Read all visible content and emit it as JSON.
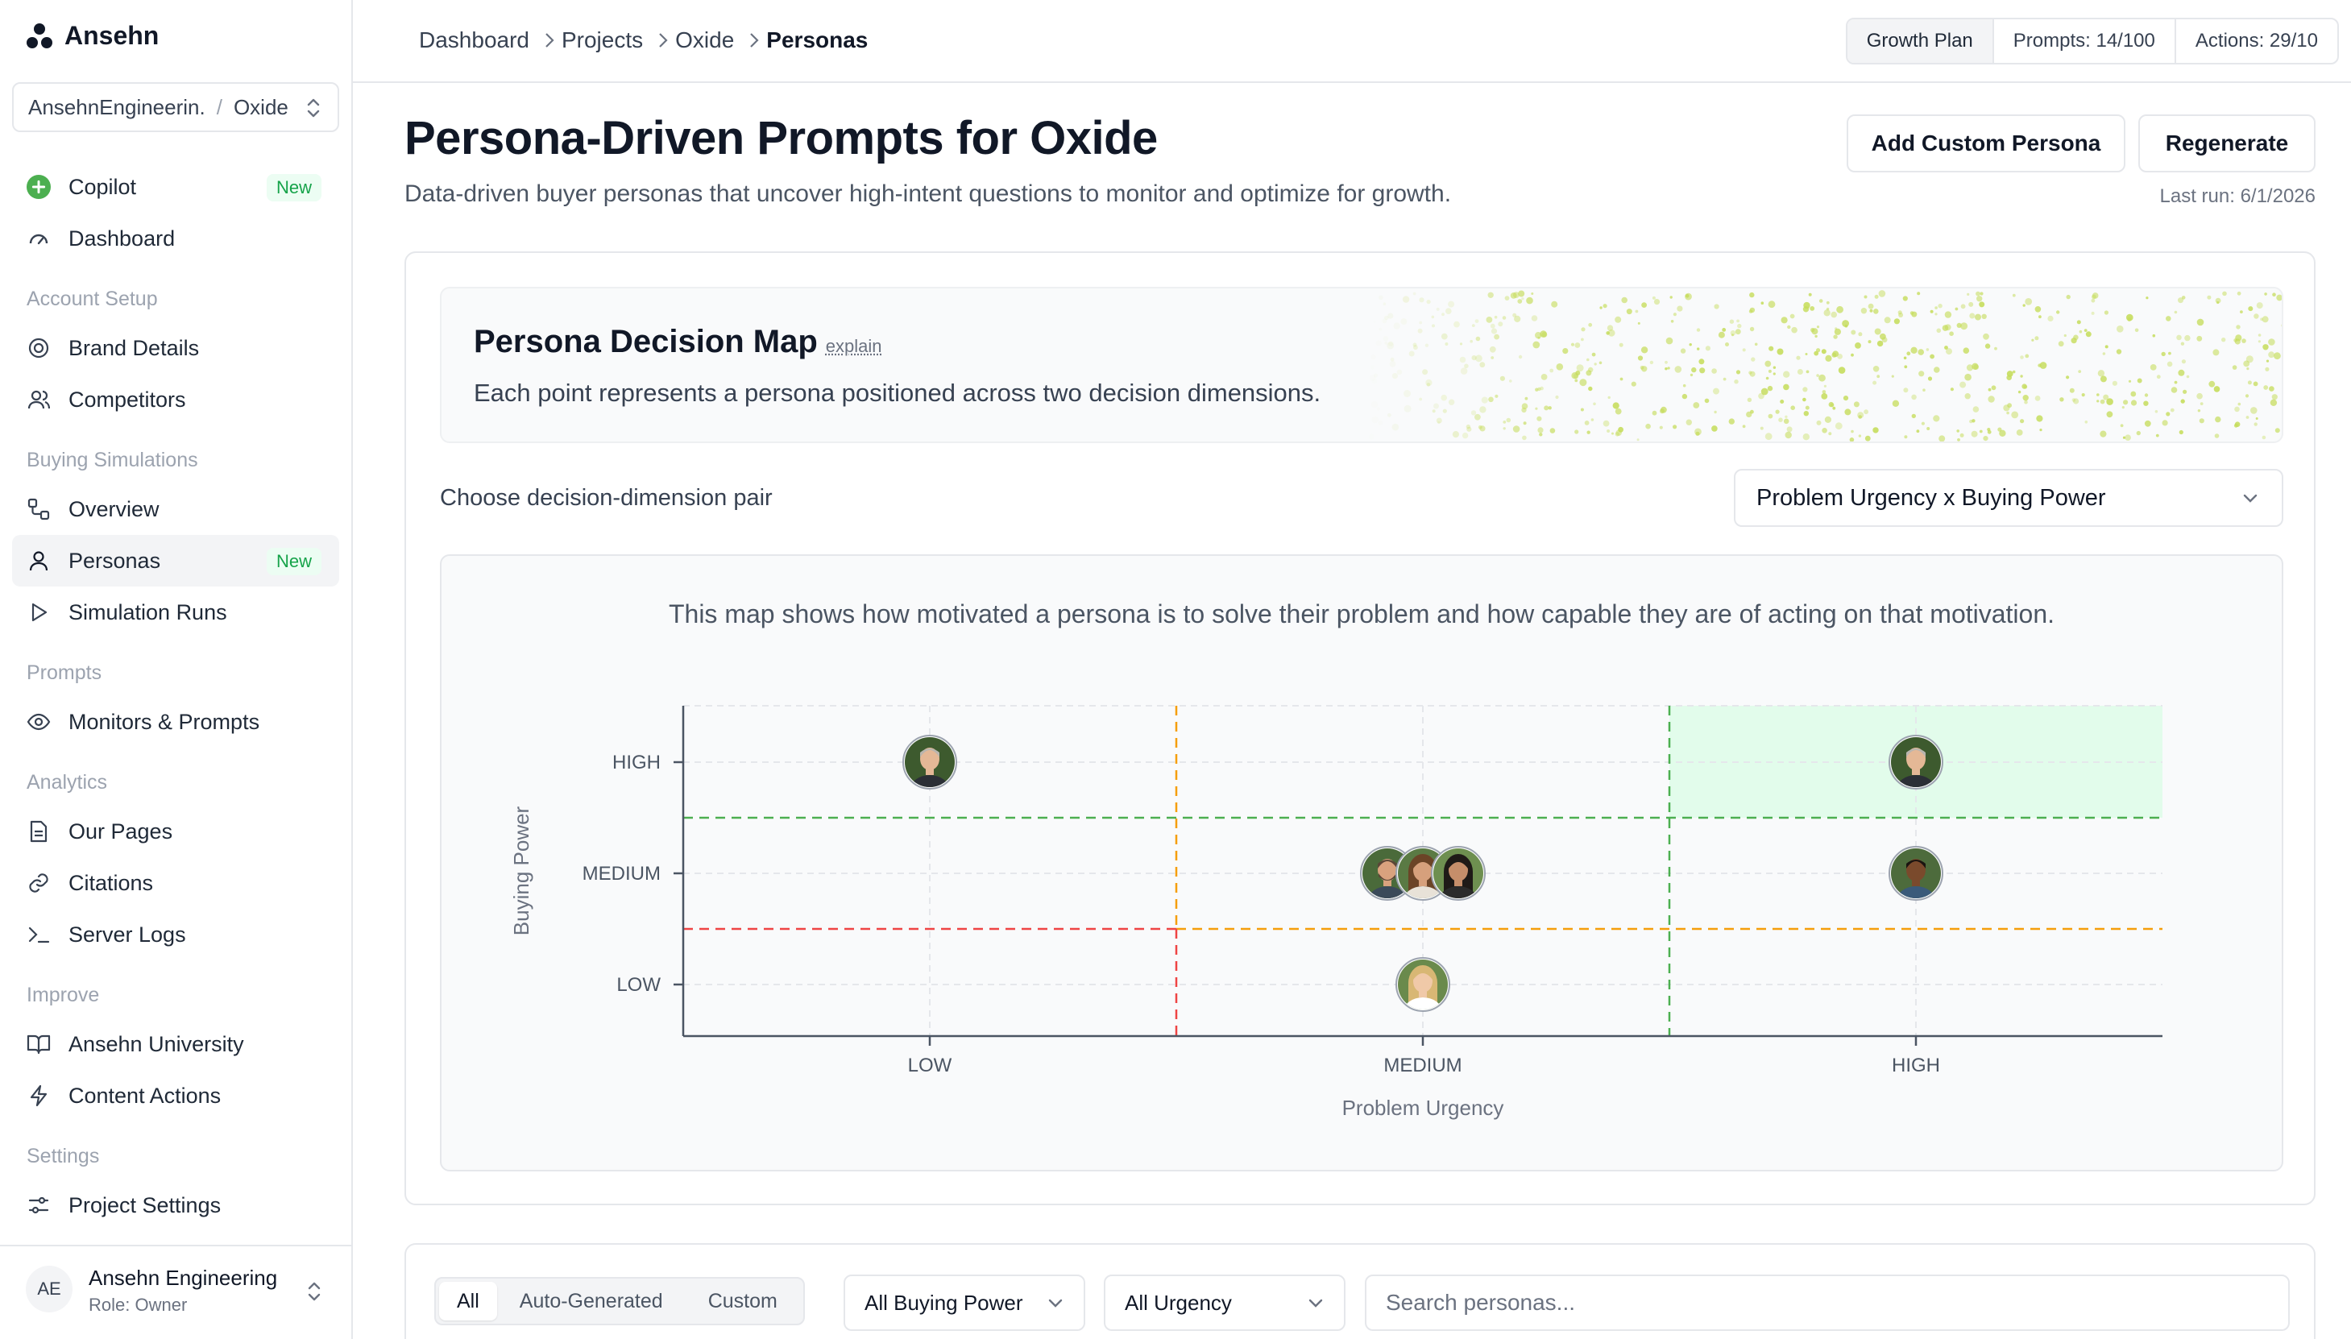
{
  "brand": {
    "name": "Ansehn"
  },
  "project_switcher": {
    "org": "AnsehnEngineerin.",
    "project": "Oxide"
  },
  "sidebar": {
    "top_items": [
      {
        "label": "Copilot",
        "icon": "plus-circle-icon",
        "badge": "New"
      },
      {
        "label": "Dashboard",
        "icon": "gauge-icon"
      }
    ],
    "sections": [
      {
        "title": "Account Setup",
        "items": [
          {
            "label": "Brand Details",
            "icon": "target-icon"
          },
          {
            "label": "Competitors",
            "icon": "users-icon"
          }
        ]
      },
      {
        "title": "Buying Simulations",
        "items": [
          {
            "label": "Overview",
            "icon": "workflow-icon"
          },
          {
            "label": "Personas",
            "icon": "user-icon",
            "badge": "New",
            "active": true
          },
          {
            "label": "Simulation Runs",
            "icon": "play-icon"
          }
        ]
      },
      {
        "title": "Prompts",
        "items": [
          {
            "label": "Monitors & Prompts",
            "icon": "eye-icon"
          }
        ]
      },
      {
        "title": "Analytics",
        "items": [
          {
            "label": "Our Pages",
            "icon": "file-icon"
          },
          {
            "label": "Citations",
            "icon": "link-icon"
          },
          {
            "label": "Server Logs",
            "icon": "terminal-icon"
          }
        ]
      },
      {
        "title": "Improve",
        "items": [
          {
            "label": "Ansehn University",
            "icon": "book-icon"
          },
          {
            "label": "Content Actions",
            "icon": "bolt-icon"
          }
        ]
      },
      {
        "title": "Settings",
        "items": [
          {
            "label": "Project Settings",
            "icon": "sliders-icon"
          }
        ]
      }
    ]
  },
  "user": {
    "initials": "AE",
    "name": "Ansehn Engineering",
    "role": "Role: Owner"
  },
  "breadcrumbs": [
    "Dashboard",
    "Projects",
    "Oxide",
    "Personas"
  ],
  "plan": {
    "name": "Growth Plan",
    "prompts": "Prompts: 14/100",
    "actions": "Actions: 29/10"
  },
  "page": {
    "title": "Persona-Driven Prompts for Oxide",
    "subtitle": "Data-driven buyer personas that uncover high-intent questions to monitor and optimize for growth.",
    "add_button": "Add Custom Persona",
    "regenerate_button": "Regenerate",
    "last_run": "Last run: 6/1/2026"
  },
  "decision_map": {
    "title": "Persona Decision Map",
    "explain": "explain",
    "subtitle": "Each point represents a persona positioned across two decision dimensions.",
    "pair_label": "Choose decision-dimension pair",
    "pair_selected": "Problem Urgency x Buying Power",
    "description": "This map shows how motivated a persona is to solve their problem and how capable they are of acting on that motivation."
  },
  "chart_data": {
    "type": "scatter",
    "xlabel": "Problem Urgency",
    "ylabel": "Buying Power",
    "x_ticks": [
      "LOW",
      "MEDIUM",
      "HIGH"
    ],
    "y_ticks": [
      "LOW",
      "MEDIUM",
      "HIGH"
    ],
    "highlight_zone": {
      "x": "HIGH",
      "y": "HIGH",
      "color": "#dcfce7"
    },
    "points": [
      {
        "x": "LOW",
        "y": "HIGH",
        "avatar": "man-gray-hair"
      },
      {
        "x": "MEDIUM",
        "y": "MEDIUM",
        "avatar": "man-beard"
      },
      {
        "x": "MEDIUM",
        "y": "MEDIUM",
        "avatar": "woman-brown-hair"
      },
      {
        "x": "MEDIUM",
        "y": "MEDIUM",
        "avatar": "woman-dark-hair"
      },
      {
        "x": "MEDIUM",
        "y": "LOW",
        "avatar": "woman-blonde"
      },
      {
        "x": "HIGH",
        "y": "HIGH",
        "avatar": "man-gray-hair"
      },
      {
        "x": "HIGH",
        "y": "MEDIUM",
        "avatar": "man-dark-skin"
      }
    ],
    "threshold_colors": {
      "red": "#ef4444",
      "orange": "#f59e0b",
      "green": "#4caf50"
    }
  },
  "filters": {
    "tabs": [
      "All",
      "Auto-Generated",
      "Custom"
    ],
    "active_tab": "All",
    "buying_power": "All Buying Power",
    "urgency": "All Urgency",
    "search_placeholder": "Search personas..."
  }
}
